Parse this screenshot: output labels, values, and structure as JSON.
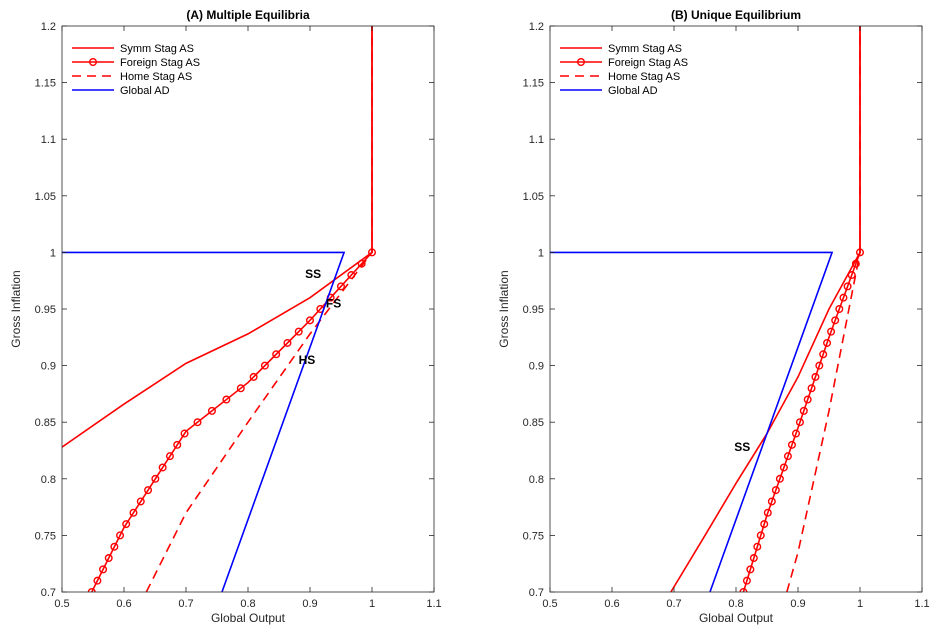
{
  "chart_data": [
    {
      "type": "line",
      "title": "(A) Multiple Equilibria",
      "xlabel": "Global Output",
      "ylabel": "Gross Inflation",
      "xlim": [
        0.5,
        1.1
      ],
      "ylim": [
        0.7,
        1.2
      ],
      "xticks": [
        0.5,
        0.6,
        0.7,
        0.8,
        0.9,
        1,
        1.1
      ],
      "xtick_labels": [
        "0.5",
        "0.6",
        "0.7",
        "0.8",
        "0.9",
        "1",
        "1.1"
      ],
      "yticks": [
        0.7,
        0.75,
        0.8,
        0.85,
        0.9,
        0.95,
        1,
        1.05,
        1.1,
        1.15,
        1.2
      ],
      "ytick_labels": [
        "0.7",
        "0.75",
        "0.8",
        "0.85",
        "0.9",
        "0.95",
        "1",
        "1.05",
        "1.1",
        "1.15",
        "1.2"
      ],
      "grid": false,
      "legend_position": "top-left",
      "series": [
        {
          "name": "Symm Stag AS",
          "color": "#ff0000",
          "style": "solid",
          "marker": "none",
          "points": [
            [
              0.5,
              0.828
            ],
            [
              0.6,
              0.866
            ],
            [
              0.7,
              0.902
            ],
            [
              0.8,
              0.928
            ],
            [
              0.9,
              0.96
            ],
            [
              1.0,
              1.0
            ],
            [
              1.0,
              1.2
            ]
          ]
        },
        {
          "name": "Foreign Stag AS",
          "color": "#ff0000",
          "style": "solid",
          "marker": "circle",
          "markers_y": [
            0.7,
            0.71,
            0.72,
            0.73,
            0.74,
            0.75,
            0.76,
            0.77,
            0.78,
            0.79,
            0.8,
            0.81,
            0.82,
            0.83,
            0.84,
            0.85,
            0.86,
            0.87,
            0.88,
            0.89,
            0.9,
            0.91,
            0.92,
            0.93,
            0.94,
            0.95,
            0.96,
            0.97,
            0.98,
            0.99,
            1.0
          ],
          "points": [
            [
              0.548,
              0.7
            ],
            [
              0.6,
              0.757
            ],
            [
              0.7,
              0.842
            ],
            [
              0.8,
              0.885
            ],
            [
              0.9,
              0.94
            ],
            [
              1.0,
              1.0
            ],
            [
              1.0,
              1.2
            ]
          ]
        },
        {
          "name": "Home Stag AS",
          "color": "#ff0000",
          "style": "dashed",
          "marker": "none",
          "points": [
            [
              0.636,
              0.7
            ],
            [
              0.7,
              0.77
            ],
            [
              0.8,
              0.85
            ],
            [
              0.9,
              0.928
            ],
            [
              1.0,
              1.0
            ],
            [
              1.0,
              1.2
            ]
          ]
        },
        {
          "name": "Global AD",
          "color": "#0000ff",
          "style": "solid",
          "marker": "none",
          "points": [
            [
              0.5,
              1.0
            ],
            [
              0.955,
              1.0
            ],
            [
              0.758,
              0.7
            ]
          ]
        }
      ],
      "annotations": [
        {
          "text": "SS",
          "x": 0.905,
          "y": 0.981
        },
        {
          "text": "FS",
          "x": 0.938,
          "y": 0.955
        },
        {
          "text": "HS",
          "x": 0.895,
          "y": 0.905
        }
      ]
    },
    {
      "type": "line",
      "title": "(B) Unique Equilibrium",
      "xlabel": "Global Output",
      "ylabel": "Gross Inflation",
      "xlim": [
        0.5,
        1.1
      ],
      "ylim": [
        0.7,
        1.2
      ],
      "xticks": [
        0.5,
        0.6,
        0.7,
        0.8,
        0.9,
        1,
        1.1
      ],
      "xtick_labels": [
        "0.5",
        "0.6",
        "0.7",
        "0.8",
        "0.9",
        "1",
        "1.1"
      ],
      "yticks": [
        0.7,
        0.75,
        0.8,
        0.85,
        0.9,
        0.95,
        1,
        1.05,
        1.1,
        1.15,
        1.2
      ],
      "ytick_labels": [
        "0.7",
        "0.75",
        "0.8",
        "0.85",
        "0.9",
        "0.95",
        "1",
        "1.05",
        "1.1",
        "1.15",
        "1.2"
      ],
      "grid": false,
      "legend_position": "top-left",
      "series": [
        {
          "name": "Symm Stag AS",
          "color": "#ff0000",
          "style": "solid",
          "marker": "none",
          "points": [
            [
              0.695,
              0.7
            ],
            [
              0.75,
              0.75
            ],
            [
              0.8,
              0.796
            ],
            [
              0.85,
              0.84
            ],
            [
              0.9,
              0.89
            ],
            [
              0.95,
              0.95
            ],
            [
              1.0,
              1.0
            ],
            [
              1.0,
              1.2
            ]
          ]
        },
        {
          "name": "Foreign Stag AS",
          "color": "#ff0000",
          "style": "solid",
          "marker": "circle",
          "markers_y": [
            0.7,
            0.71,
            0.72,
            0.73,
            0.74,
            0.75,
            0.76,
            0.77,
            0.78,
            0.79,
            0.8,
            0.81,
            0.82,
            0.83,
            0.84,
            0.85,
            0.86,
            0.87,
            0.88,
            0.89,
            0.9,
            0.91,
            0.92,
            0.93,
            0.94,
            0.95,
            0.96,
            0.97,
            0.98,
            0.99,
            1.0
          ],
          "points": [
            [
              0.812,
              0.7
            ],
            [
              0.85,
              0.768
            ],
            [
              0.9,
              0.845
            ],
            [
              0.95,
              0.925
            ],
            [
              1.0,
              1.0
            ],
            [
              1.0,
              1.2
            ]
          ]
        },
        {
          "name": "Home Stag AS",
          "color": "#ff0000",
          "style": "dashed",
          "marker": "none",
          "points": [
            [
              0.882,
              0.7
            ],
            [
              0.9,
              0.735
            ],
            [
              0.95,
              0.86
            ],
            [
              1.0,
              1.0
            ],
            [
              1.0,
              1.2
            ]
          ]
        },
        {
          "name": "Global AD",
          "color": "#0000ff",
          "style": "solid",
          "marker": "none",
          "points": [
            [
              0.5,
              1.0
            ],
            [
              0.955,
              1.0
            ],
            [
              0.758,
              0.7
            ]
          ]
        }
      ],
      "annotations": [
        {
          "text": "SS",
          "x": 0.81,
          "y": 0.828
        }
      ]
    }
  ]
}
